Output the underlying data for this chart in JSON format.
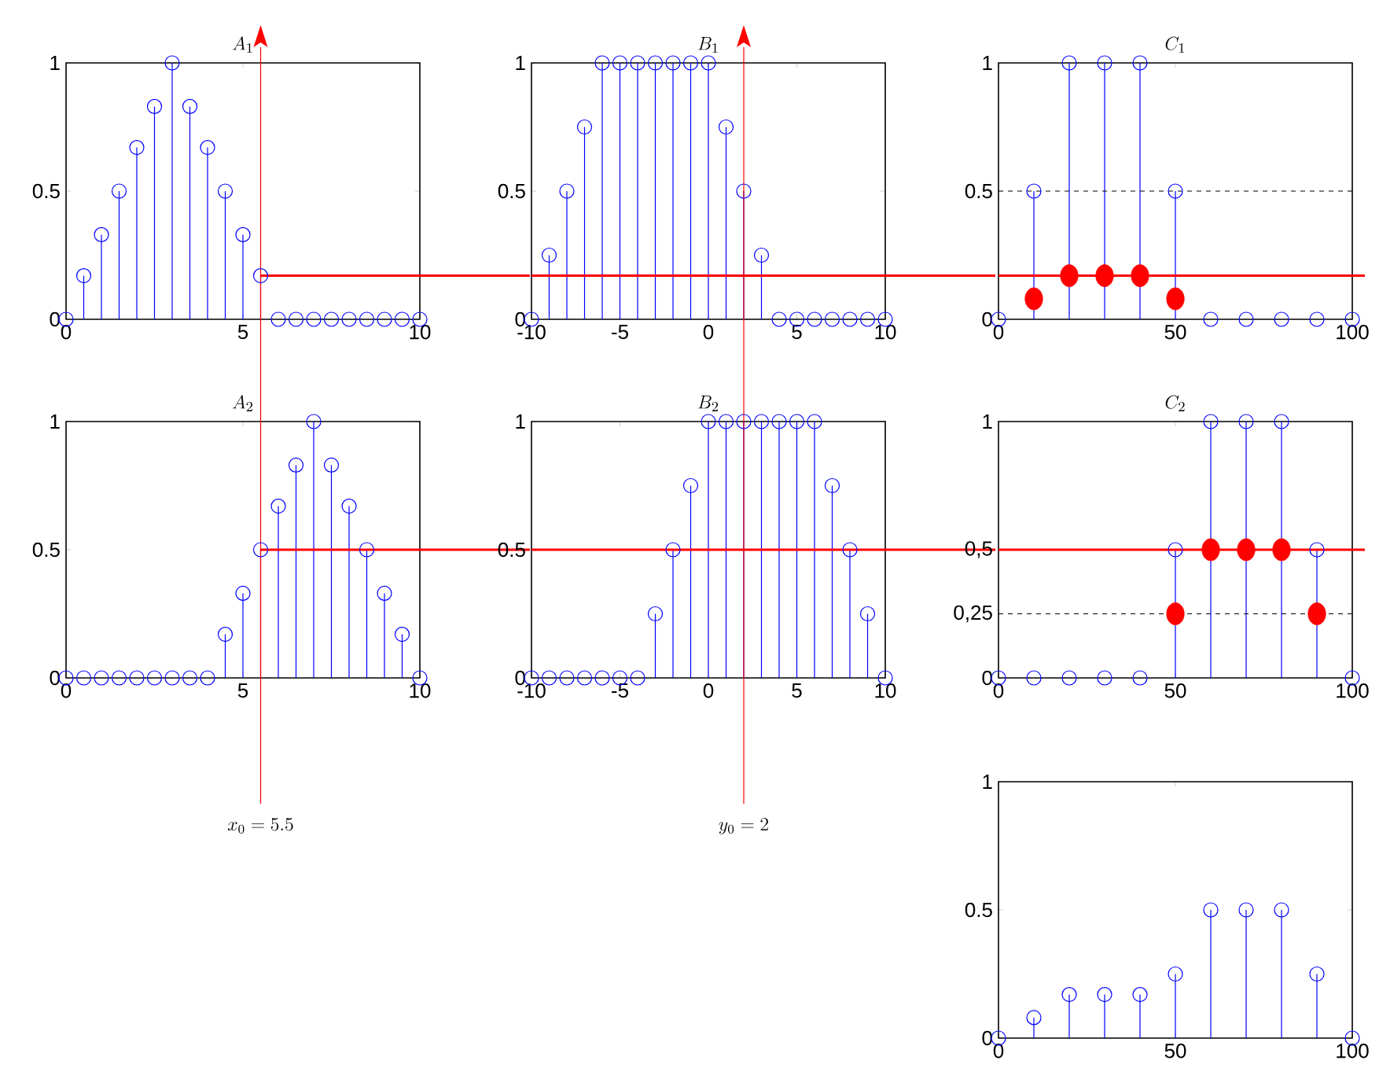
{
  "chart_data": [
    {
      "type": "lollipop",
      "title": "A_1",
      "marker": "circle",
      "x": [
        0,
        0.5,
        1,
        1.5,
        2,
        2.5,
        3,
        3.5,
        4,
        4.5,
        5,
        5.5,
        6,
        6.5,
        7,
        7.5,
        8,
        8.5,
        9,
        9.5,
        10
      ],
      "series": [
        {
          "color": "#0000ff",
          "values": [
            0,
            0.17,
            0.33,
            0.5,
            0.67,
            0.83,
            1,
            0.83,
            0.67,
            0.5,
            0.33,
            0.17,
            0,
            0,
            0,
            0,
            0,
            0,
            0,
            0,
            0
          ]
        }
      ],
      "xlim": [
        0,
        10
      ],
      "ylim": [
        0,
        1
      ],
      "xticks": [
        0,
        5,
        10
      ],
      "yticks": [
        0,
        0.5,
        1
      ],
      "ref_lines": [
        {
          "axis": "x",
          "value": 5.5,
          "color": "#ff0000"
        },
        {
          "axis": "y",
          "value": 0.17,
          "color": "#ff0000",
          "line_style": "solid"
        }
      ]
    },
    {
      "type": "lollipop",
      "title": "B_1",
      "marker": "circle",
      "x": [
        -10,
        -9,
        -8,
        -7,
        -6,
        -5,
        -4,
        -3,
        -2,
        -1,
        0,
        1,
        2,
        3,
        4,
        5,
        6,
        7,
        8,
        9,
        10
      ],
      "series": [
        {
          "color": "#0000ff",
          "values": [
            0,
            0.25,
            0.5,
            0.75,
            1,
            1,
            1,
            1,
            1,
            1,
            1,
            0.75,
            0.5,
            0.25,
            0,
            0,
            0,
            0,
            0,
            0,
            0
          ]
        }
      ],
      "xlim": [
        -10,
        10
      ],
      "ylim": [
        0,
        1
      ],
      "xticks": [
        -10,
        -5,
        0,
        5,
        10
      ],
      "yticks": [
        0,
        0.5,
        1
      ],
      "ref_lines": [
        {
          "axis": "x",
          "value": 2,
          "color": "#ff0000"
        },
        {
          "axis": "y",
          "value": 0.17,
          "color": "#ff0000",
          "line_style": "solid"
        }
      ]
    },
    {
      "type": "lollipop",
      "title": "C_1",
      "marker": "circle",
      "x": [
        0,
        10,
        20,
        30,
        40,
        50,
        60,
        70,
        80,
        90,
        100
      ],
      "series": [
        {
          "color": "#0000ff",
          "values": [
            0,
            0.5,
            1,
            1,
            1,
            0.5,
            0,
            0,
            0,
            0,
            0
          ]
        },
        {
          "type": "scatter",
          "color": "#ff0000",
          "x": [
            10,
            20,
            30,
            40,
            50
          ],
          "values": [
            0.08,
            0.17,
            0.17,
            0.17,
            0.08
          ]
        }
      ],
      "xlim": [
        0,
        100
      ],
      "ylim": [
        0,
        1
      ],
      "xticks": [
        0,
        50,
        100
      ],
      "yticks": [
        0,
        0.5,
        1
      ],
      "ref_lines": [
        {
          "axis": "y",
          "value": 0.5,
          "color": "#000000",
          "line_style": "dashed"
        },
        {
          "axis": "y",
          "value": 0.17,
          "color": "#ff0000",
          "line_style": "solid"
        }
      ]
    },
    {
      "type": "lollipop",
      "title": "A_2",
      "marker": "circle",
      "x": [
        0,
        0.5,
        1,
        1.5,
        2,
        2.5,
        3,
        3.5,
        4,
        4.5,
        5,
        5.5,
        6,
        6.5,
        7,
        7.5,
        8,
        8.5,
        9,
        9.5,
        10
      ],
      "series": [
        {
          "color": "#0000ff",
          "values": [
            0,
            0,
            0,
            0,
            0,
            0,
            0,
            0,
            0,
            0.17,
            0.33,
            0.5,
            0.67,
            0.83,
            1,
            0.83,
            0.67,
            0.5,
            0.33,
            0.17,
            0
          ]
        }
      ],
      "xlim": [
        0,
        10
      ],
      "ylim": [
        0,
        1
      ],
      "xticks": [
        0,
        5,
        10
      ],
      "yticks": [
        0,
        0.5,
        1
      ],
      "ref_lines": [
        {
          "axis": "x",
          "value": 5.5,
          "color": "#ff0000",
          "label": "x_0 = 5.5"
        },
        {
          "axis": "y",
          "value": 0.5,
          "color": "#ff0000",
          "line_style": "solid"
        }
      ]
    },
    {
      "type": "lollipop",
      "title": "B_2",
      "marker": "circle",
      "x": [
        -10,
        -9,
        -8,
        -7,
        -6,
        -5,
        -4,
        -3,
        -2,
        -1,
        0,
        1,
        2,
        3,
        4,
        5,
        6,
        7,
        8,
        9,
        10
      ],
      "series": [
        {
          "color": "#0000ff",
          "values": [
            0,
            0,
            0,
            0,
            0,
            0,
            0,
            0.25,
            0.5,
            0.75,
            1,
            1,
            1,
            1,
            1,
            1,
            1,
            0.75,
            0.5,
            0.25,
            0
          ]
        }
      ],
      "xlim": [
        -10,
        10
      ],
      "ylim": [
        0,
        1
      ],
      "xticks": [
        -10,
        -5,
        0,
        5,
        10
      ],
      "yticks": [
        0,
        0.5,
        1
      ],
      "ref_lines": [
        {
          "axis": "x",
          "value": 2,
          "color": "#ff0000",
          "label": "y_0 = 2"
        },
        {
          "axis": "y",
          "value": 0.5,
          "color": "#ff0000",
          "line_style": "solid"
        }
      ]
    },
    {
      "type": "lollipop",
      "title": "C_2",
      "marker": "circle",
      "x": [
        0,
        10,
        20,
        30,
        40,
        50,
        60,
        70,
        80,
        90,
        100
      ],
      "series": [
        {
          "color": "#0000ff",
          "values": [
            0,
            0,
            0,
            0,
            0,
            0.5,
            1,
            1,
            1,
            0.5,
            0
          ]
        },
        {
          "type": "scatter",
          "color": "#ff0000",
          "x": [
            50,
            60,
            70,
            80,
            90
          ],
          "values": [
            0.25,
            0.5,
            0.5,
            0.5,
            0.25
          ]
        }
      ],
      "xlim": [
        0,
        100
      ],
      "ylim": [
        0,
        1
      ],
      "xticks": [
        0,
        50,
        100
      ],
      "yticks": [
        0,
        {
          "value": 0.25,
          "label": "0,25"
        },
        {
          "value": 0.5,
          "label": "0,5"
        },
        1
      ],
      "ref_lines": [
        {
          "axis": "y",
          "value": 0.25,
          "color": "#000000",
          "line_style": "dashed"
        },
        {
          "axis": "y",
          "value": 0.5,
          "color": "#ff0000",
          "line_style": "solid"
        }
      ]
    },
    {
      "type": "lollipop",
      "marker": "circle",
      "x": [
        0,
        10,
        20,
        30,
        40,
        50,
        60,
        70,
        80,
        90,
        100
      ],
      "series": [
        {
          "color": "#0000ff",
          "values": [
            0,
            0.08,
            0.17,
            0.17,
            0.17,
            0.25,
            0.5,
            0.5,
            0.5,
            0.25,
            0
          ]
        }
      ],
      "xlim": [
        0,
        100
      ],
      "ylim": [
        0,
        1
      ],
      "xticks": [
        0,
        50,
        100
      ],
      "yticks": [
        0,
        0.5,
        1
      ]
    }
  ]
}
